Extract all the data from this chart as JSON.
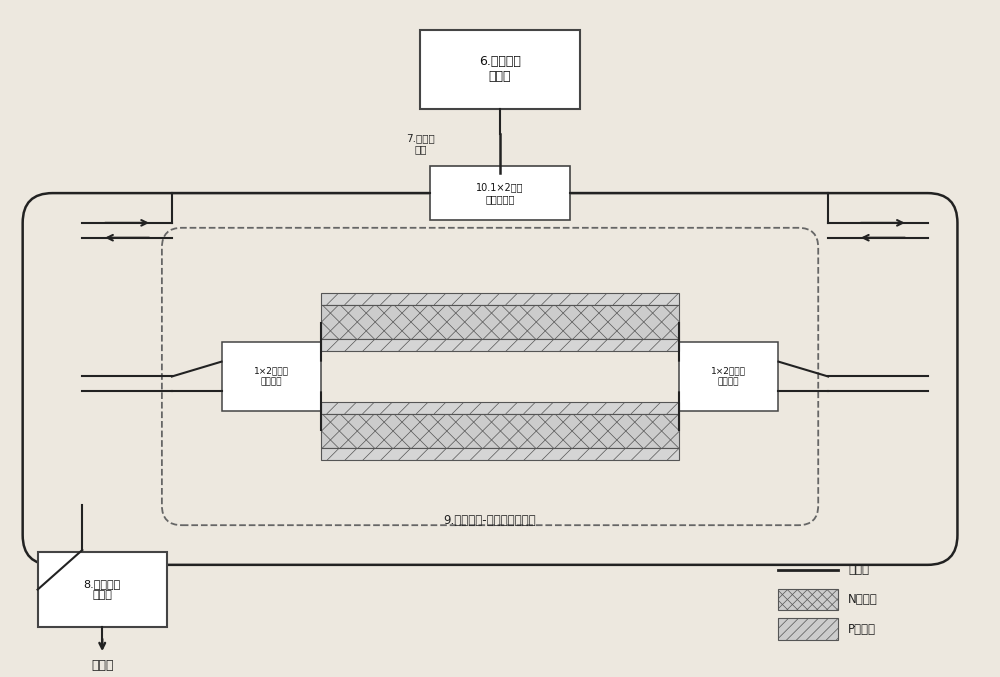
{
  "bg_color": "#ede8df",
  "box_color": "#ffffff",
  "box_edge_color": "#444444",
  "line_color": "#222222",
  "title_top": "6.半导体光\n放大器",
  "label_mode_converter": "7.模式转\n换器",
  "label_coupler_top": "10.1×2多模\n干涉耦合器",
  "label_coupler_left": "1×2多模干\n涉耦合器",
  "label_coupler_right": "1×2多模干\n涉耦合器",
  "label_resonator": "8.热调微环\n谐振器",
  "label_mach_zehnder": "9.电调马赫-增德尔干涉结构",
  "label_output": "光输出",
  "legend_line": "硅波导",
  "legend_n": "N型掺杂",
  "legend_p": "P型掺杂"
}
